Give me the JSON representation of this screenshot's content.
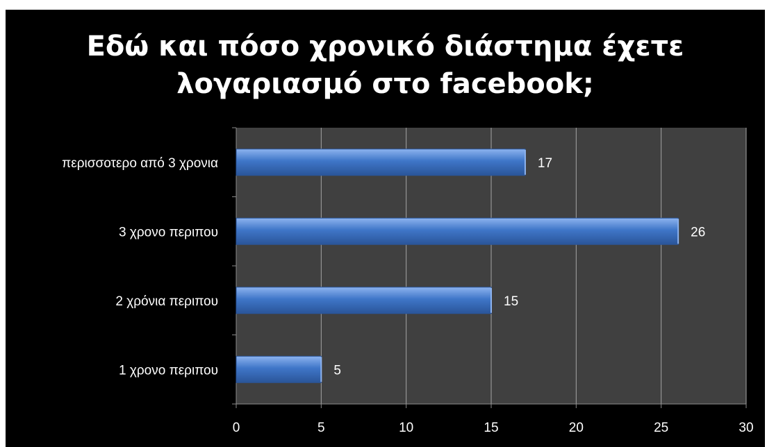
{
  "chart_data": {
    "type": "bar",
    "orientation": "horizontal",
    "title": "Εδώ και πόσο χρονικό διάστημα έχετε\nλογαριασμό στο facebook;",
    "categories": [
      "περισσοτερο από 3 χρονια",
      "3 χρονο περιπου",
      "2 χρόνια περιπου",
      "1 χρονο περιπου"
    ],
    "values": [
      17,
      26,
      15,
      5
    ],
    "data_labels": [
      "17",
      "26",
      "15",
      "5"
    ],
    "xlim": [
      0,
      30
    ],
    "xticks": [
      "0",
      "5",
      "10",
      "15",
      "20",
      "25",
      "30"
    ],
    "grid": "vertical",
    "legend": "none",
    "colors": {
      "page_background": "#ffffff",
      "background": "#000000",
      "plot_background": "#404040",
      "bar": "#3f76c8",
      "bar_light": "#8db3ef",
      "bar_dark": "#2a5599",
      "gridline": "#a6a6a6",
      "axis": "#8c8c8c",
      "text": "#ffffff"
    }
  }
}
